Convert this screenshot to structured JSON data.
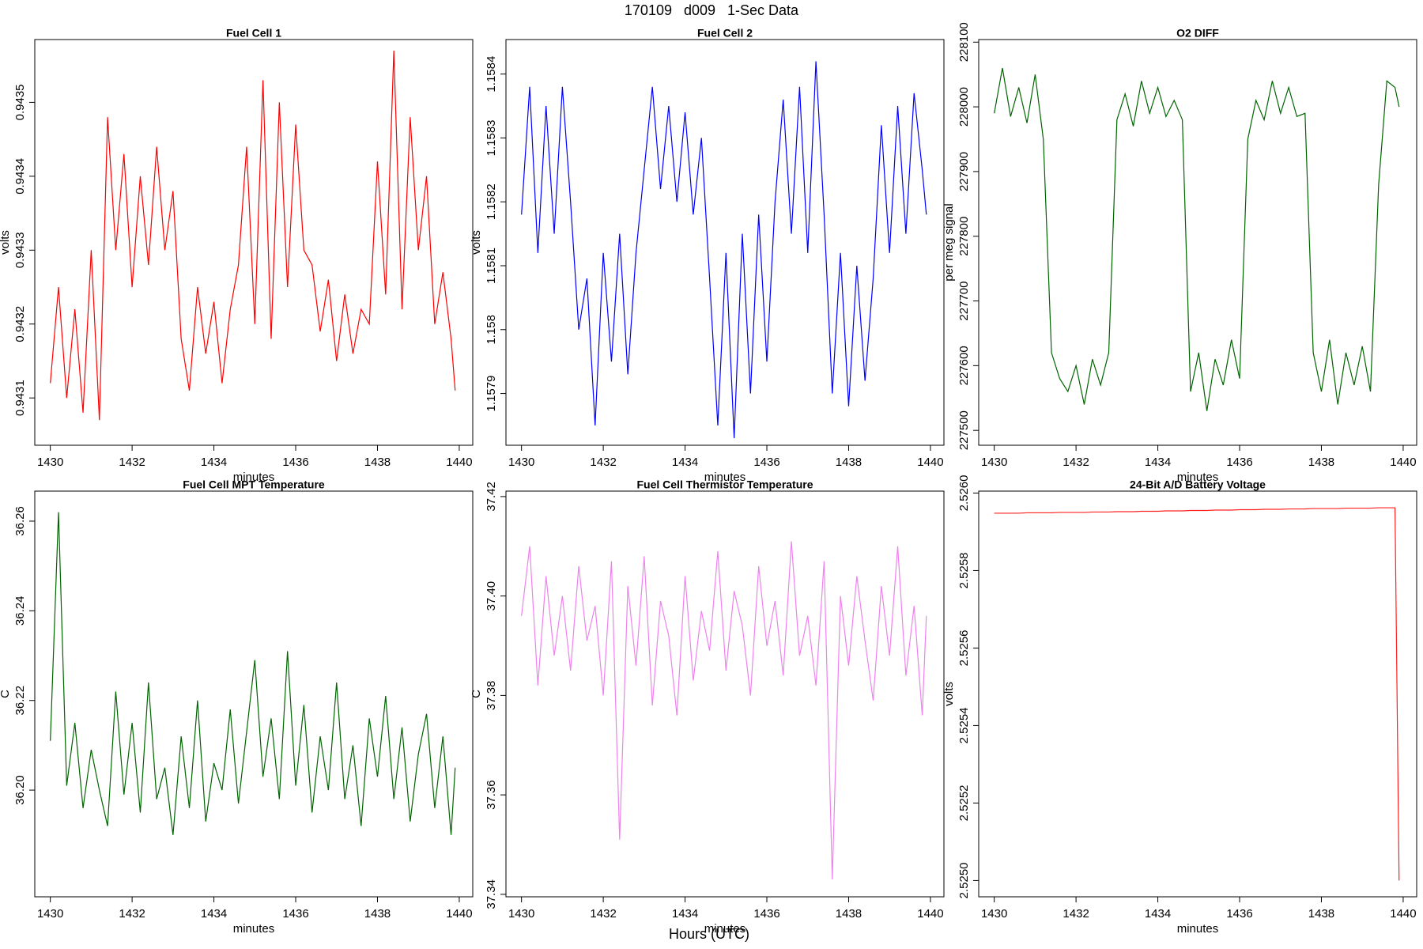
{
  "title": "170109   d009   1-Sec Data",
  "xlabel": "Hours (UTC)",
  "chart_data": [
    {
      "type": "line",
      "title": "Fuel Cell 1",
      "xlabel": "minutes",
      "ylabel": "volts",
      "color": "#ff0000",
      "xlim": [
        1429.62,
        1440.33
      ],
      "xticks": [
        1430,
        1432,
        1434,
        1436,
        1438,
        1440
      ],
      "ylim": [
        0.943036,
        0.943585
      ],
      "yticks": [
        0.9431,
        0.9432,
        0.9433,
        0.9434,
        0.9435
      ],
      "x": [
        1430,
        1430.2,
        1430.4,
        1430.6,
        1430.8,
        1431,
        1431.2,
        1431.4,
        1431.6,
        1431.8,
        1432,
        1432.2,
        1432.4,
        1432.6,
        1432.8,
        1433,
        1433.2,
        1433.4,
        1433.6,
        1433.8,
        1434,
        1434.2,
        1434.4,
        1434.6,
        1434.8,
        1435,
        1435.2,
        1435.4,
        1435.6,
        1435.8,
        1436,
        1436.2,
        1436.4,
        1436.6,
        1436.8,
        1437,
        1437.2,
        1437.4,
        1437.6,
        1437.8,
        1438,
        1438.2,
        1438.4,
        1438.6,
        1438.8,
        1439,
        1439.2,
        1439.4,
        1439.6,
        1439.8,
        1439.9
      ],
      "values": [
        0.94312,
        0.94325,
        0.9431,
        0.94322,
        0.94308,
        0.9433,
        0.94307,
        0.94348,
        0.9433,
        0.94343,
        0.94325,
        0.9434,
        0.94328,
        0.94344,
        0.9433,
        0.94338,
        0.94318,
        0.94311,
        0.94325,
        0.94316,
        0.94323,
        0.94312,
        0.94322,
        0.94328,
        0.94344,
        0.9432,
        0.94353,
        0.94318,
        0.9435,
        0.94325,
        0.94347,
        0.9433,
        0.94328,
        0.94319,
        0.94326,
        0.94315,
        0.94324,
        0.94316,
        0.94322,
        0.9432,
        0.94342,
        0.94324,
        0.94357,
        0.94322,
        0.94348,
        0.9433,
        0.9434,
        0.9432,
        0.94327,
        0.94318,
        0.94311
      ]
    },
    {
      "type": "line",
      "title": "Fuel Cell 2",
      "xlabel": "minutes",
      "ylabel": "volts",
      "color": "#0000ff",
      "xlim": [
        1429.62,
        1440.33
      ],
      "xticks": [
        1430,
        1432,
        1434,
        1436,
        1438,
        1440
      ],
      "ylim": [
        1.157819,
        1.158454
      ],
      "yticks": [
        1.1579,
        1.158,
        1.1581,
        1.1582,
        1.1583,
        1.1584
      ],
      "x": [
        1430,
        1430.2,
        1430.4,
        1430.6,
        1430.8,
        1431,
        1431.2,
        1431.4,
        1431.6,
        1431.8,
        1432,
        1432.2,
        1432.4,
        1432.6,
        1432.8,
        1433,
        1433.2,
        1433.4,
        1433.6,
        1433.8,
        1434,
        1434.2,
        1434.4,
        1434.6,
        1434.8,
        1435,
        1435.2,
        1435.4,
        1435.6,
        1435.8,
        1436,
        1436.2,
        1436.4,
        1436.6,
        1436.8,
        1437,
        1437.2,
        1437.4,
        1437.6,
        1437.8,
        1438,
        1438.2,
        1438.4,
        1438.6,
        1438.8,
        1439,
        1439.2,
        1439.4,
        1439.6,
        1439.8,
        1439.9
      ],
      "values": [
        1.15818,
        1.15838,
        1.15812,
        1.15835,
        1.15815,
        1.15838,
        1.1582,
        1.158,
        1.15808,
        1.15785,
        1.15812,
        1.15795,
        1.15815,
        1.15793,
        1.15812,
        1.15825,
        1.15838,
        1.15822,
        1.15835,
        1.1582,
        1.15834,
        1.15818,
        1.1583,
        1.15808,
        1.15785,
        1.15812,
        1.15783,
        1.15815,
        1.1579,
        1.15818,
        1.15795,
        1.1582,
        1.15836,
        1.15815,
        1.15838,
        1.15812,
        1.15842,
        1.15818,
        1.1579,
        1.15812,
        1.15788,
        1.1581,
        1.15792,
        1.15808,
        1.15832,
        1.15812,
        1.15835,
        1.15815,
        1.15837,
        1.15825,
        1.15818
      ]
    },
    {
      "type": "line",
      "title": "O2 DIFF",
      "xlabel": "minutes",
      "ylabel": "per meg signal",
      "color": "#006400",
      "xlim": [
        1429.62,
        1440.33
      ],
      "xticks": [
        1430,
        1432,
        1434,
        1436,
        1438,
        1440
      ],
      "ylim": [
        227477,
        228104
      ],
      "yticks": [
        227500,
        227600,
        227700,
        227800,
        227900,
        228000,
        228100
      ],
      "x": [
        1430,
        1430.2,
        1430.4,
        1430.6,
        1430.8,
        1431,
        1431.2,
        1431.4,
        1431.6,
        1431.8,
        1432,
        1432.2,
        1432.4,
        1432.6,
        1432.8,
        1433,
        1433.2,
        1433.4,
        1433.6,
        1433.8,
        1434,
        1434.2,
        1434.4,
        1434.6,
        1434.8,
        1435,
        1435.2,
        1435.4,
        1435.6,
        1435.8,
        1436,
        1436.2,
        1436.4,
        1436.6,
        1436.8,
        1437,
        1437.2,
        1437.4,
        1437.6,
        1437.8,
        1438,
        1438.2,
        1438.4,
        1438.6,
        1438.8,
        1439,
        1439.2,
        1439.4,
        1439.6,
        1439.8,
        1439.9
      ],
      "values": [
        227990,
        228060,
        227985,
        228030,
        227975,
        228050,
        227950,
        227620,
        227580,
        227560,
        227600,
        227540,
        227610,
        227570,
        227620,
        227980,
        228020,
        227970,
        228040,
        227990,
        228030,
        227985,
        228010,
        227980,
        227560,
        227620,
        227530,
        227610,
        227570,
        227640,
        227580,
        227950,
        228010,
        227980,
        228040,
        227990,
        228030,
        227985,
        227990,
        227620,
        227560,
        227640,
        227540,
        227620,
        227570,
        227630,
        227560,
        227880,
        228040,
        228030,
        228000
      ]
    },
    {
      "type": "line",
      "title": "Fuel Cell MPT Temperature",
      "xlabel": "minutes",
      "ylabel": "C",
      "color": "#006400",
      "xlim": [
        1429.62,
        1440.33
      ],
      "xticks": [
        1430,
        1432,
        1434,
        1436,
        1438,
        1440
      ],
      "ylim": [
        36.1762,
        36.2667
      ],
      "yticks": [
        {
          "value": 36.2,
          "label": "36.20"
        },
        36.22,
        36.24,
        36.26
      ],
      "x": [
        1430,
        1430.2,
        1430.4,
        1430.6,
        1430.8,
        1431,
        1431.2,
        1431.4,
        1431.6,
        1431.8,
        1432,
        1432.2,
        1432.4,
        1432.6,
        1432.8,
        1433,
        1433.2,
        1433.4,
        1433.6,
        1433.8,
        1434,
        1434.2,
        1434.4,
        1434.6,
        1434.8,
        1435,
        1435.2,
        1435.4,
        1435.6,
        1435.8,
        1436,
        1436.2,
        1436.4,
        1436.6,
        1436.8,
        1437,
        1437.2,
        1437.4,
        1437.6,
        1437.8,
        1438,
        1438.2,
        1438.4,
        1438.6,
        1438.8,
        1439,
        1439.2,
        1439.4,
        1439.6,
        1439.8,
        1439.9
      ],
      "values": [
        36.211,
        36.262,
        36.201,
        36.215,
        36.196,
        36.209,
        36.2,
        36.192,
        36.222,
        36.199,
        36.215,
        36.195,
        36.224,
        36.198,
        36.205,
        36.19,
        36.212,
        36.196,
        36.22,
        36.193,
        36.206,
        36.2,
        36.218,
        36.197,
        36.213,
        36.229,
        36.203,
        36.216,
        36.198,
        36.231,
        36.201,
        36.219,
        36.195,
        36.212,
        36.2,
        36.224,
        36.198,
        36.21,
        36.192,
        36.216,
        36.203,
        36.221,
        36.198,
        36.214,
        36.193,
        36.208,
        36.217,
        36.196,
        36.212,
        36.19,
        36.205
      ]
    },
    {
      "type": "line",
      "title": "Fuel Cell Thermistor Temperature",
      "xlabel": "minutes",
      "ylabel": "C",
      "color": "#ee82ee",
      "xlim": [
        1429.62,
        1440.33
      ],
      "xticks": [
        1430,
        1432,
        1434,
        1436,
        1438,
        1440
      ],
      "ylim": [
        37.3395,
        37.4211
      ],
      "yticks": [
        37.34,
        37.36,
        37.38,
        {
          "value": 37.4,
          "label": "37.40"
        },
        37.42
      ],
      "x": [
        1430,
        1430.2,
        1430.4,
        1430.6,
        1430.8,
        1431,
        1431.2,
        1431.4,
        1431.6,
        1431.8,
        1432,
        1432.2,
        1432.4,
        1432.6,
        1432.8,
        1433,
        1433.2,
        1433.4,
        1433.6,
        1433.8,
        1434,
        1434.2,
        1434.4,
        1434.6,
        1434.8,
        1435,
        1435.2,
        1435.4,
        1435.6,
        1435.8,
        1436,
        1436.2,
        1436.4,
        1436.6,
        1436.8,
        1437,
        1437.2,
        1437.4,
        1437.6,
        1437.8,
        1438,
        1438.2,
        1438.4,
        1438.6,
        1438.8,
        1439,
        1439.2,
        1439.4,
        1439.6,
        1439.8,
        1439.9
      ],
      "values": [
        37.396,
        37.41,
        37.382,
        37.404,
        37.388,
        37.4,
        37.385,
        37.406,
        37.391,
        37.398,
        37.38,
        37.407,
        37.351,
        37.402,
        37.386,
        37.408,
        37.378,
        37.399,
        37.392,
        37.376,
        37.404,
        37.383,
        37.397,
        37.389,
        37.409,
        37.385,
        37.401,
        37.394,
        37.38,
        37.406,
        37.39,
        37.399,
        37.384,
        37.411,
        37.388,
        37.396,
        37.382,
        37.407,
        37.343,
        37.4,
        37.386,
        37.404,
        37.391,
        37.379,
        37.402,
        37.388,
        37.41,
        37.384,
        37.398,
        37.376,
        37.396
      ]
    },
    {
      "type": "line",
      "title": "24-Bit A/D Battery Voltage",
      "xlabel": "minutes",
      "ylabel": "volts",
      "color": "#ff2020",
      "xlim": [
        1429.62,
        1440.33
      ],
      "xticks": [
        1430,
        1432,
        1434,
        1436,
        1438,
        1440
      ],
      "ylim": [
        2.524958,
        2.526005
      ],
      "yticks": [
        {
          "value": 2.525,
          "label": "2.5250"
        },
        2.5252,
        2.5254,
        2.5256,
        2.5258,
        {
          "value": 2.526,
          "label": "2.5260"
        }
      ],
      "x": [
        1430,
        1430.2,
        1430.4,
        1430.6,
        1430.8,
        1431,
        1431.2,
        1431.4,
        1431.6,
        1431.8,
        1432,
        1432.2,
        1432.4,
        1432.6,
        1432.8,
        1433,
        1433.2,
        1433.4,
        1433.6,
        1433.8,
        1434,
        1434.2,
        1434.4,
        1434.6,
        1434.8,
        1435,
        1435.2,
        1435.4,
        1435.6,
        1435.8,
        1436,
        1436.2,
        1436.4,
        1436.6,
        1436.8,
        1437,
        1437.2,
        1437.4,
        1437.6,
        1437.8,
        1438,
        1438.2,
        1438.4,
        1438.6,
        1438.8,
        1439,
        1439.2,
        1439.4,
        1439.6,
        1439.8,
        1439.9
      ],
      "values": [
        2.525948,
        2.525948,
        2.525948,
        2.525948,
        2.525949,
        2.525949,
        2.525949,
        2.525949,
        2.52595,
        2.52595,
        2.52595,
        2.52595,
        2.525951,
        2.525951,
        2.525951,
        2.525952,
        2.525952,
        2.525952,
        2.525953,
        2.525953,
        2.525953,
        2.525954,
        2.525954,
        2.525954,
        2.525955,
        2.525955,
        2.525955,
        2.525956,
        2.525956,
        2.525956,
        2.525957,
        2.525957,
        2.525957,
        2.525958,
        2.525958,
        2.525958,
        2.525959,
        2.525959,
        2.525959,
        2.52596,
        2.52596,
        2.52596,
        2.52596,
        2.525961,
        2.525961,
        2.525961,
        2.525961,
        2.525962,
        2.525962,
        2.525962,
        2.525
      ]
    }
  ]
}
